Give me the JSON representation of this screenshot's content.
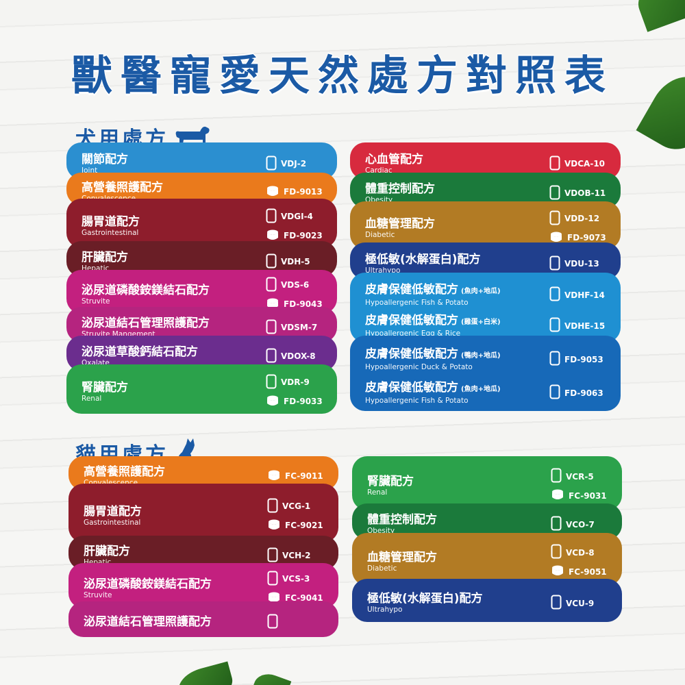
{
  "title": "獸醫寵愛天然處方對照表",
  "dog": {
    "heading": "犬用處方",
    "left": [
      {
        "color": "#2b8fd0",
        "entries": [
          {
            "zh": "關節配方",
            "en": "Joint",
            "codes": [
              {
                "code": "VDJ-2",
                "pack": "bag"
              }
            ]
          }
        ]
      },
      {
        "color": "#ea7a1c",
        "entries": [
          {
            "zh": "高營養照護配方",
            "en": "Convalescence",
            "codes": [
              {
                "code": "FD-9013",
                "pack": "can"
              }
            ]
          }
        ]
      },
      {
        "color": "#8e1d2c",
        "entries": [
          {
            "zh": "腸胃道配方",
            "en": "Gastrointestinal",
            "codes": [
              {
                "code": "VDGI-4",
                "pack": "bag"
              },
              {
                "code": "FD-9023",
                "pack": "can"
              }
            ]
          }
        ]
      },
      {
        "color": "#6a1e26",
        "entries": [
          {
            "zh": "肝臟配方",
            "en": "Hepatic",
            "codes": [
              {
                "code": "VDH-5",
                "pack": "bag"
              }
            ]
          }
        ]
      },
      {
        "color": "#c3207f",
        "entries": [
          {
            "zh": "泌尿道磷酸銨鎂結石配方",
            "en": "Struvite",
            "codes": [
              {
                "code": "VDS-6",
                "pack": "bag"
              },
              {
                "code": "FD-9043",
                "pack": "can"
              }
            ]
          }
        ]
      },
      {
        "color": "#b5247f",
        "entries": [
          {
            "zh": "泌尿道結石管理照護配方",
            "en": "Struvite Mangement",
            "codes": [
              {
                "code": "VDSM-7",
                "pack": "bag"
              }
            ]
          }
        ]
      },
      {
        "color": "#6b2d8e",
        "entries": [
          {
            "zh": "泌尿道草酸鈣結石配方",
            "en": "Oxalate",
            "codes": [
              {
                "code": "VDOX-8",
                "pack": "bag"
              }
            ]
          }
        ]
      },
      {
        "color": "#2ba24b",
        "entries": [
          {
            "zh": "腎臟配方",
            "en": "Renal",
            "codes": [
              {
                "code": "VDR-9",
                "pack": "bag"
              },
              {
                "code": "FD-9033",
                "pack": "can"
              }
            ]
          }
        ]
      }
    ],
    "right": [
      {
        "color": "#d72a3e",
        "entries": [
          {
            "zh": "心血管配方",
            "en": "Cardiac",
            "codes": [
              {
                "code": "VDCA-10",
                "pack": "bag"
              }
            ]
          }
        ]
      },
      {
        "color": "#1b7a3b",
        "entries": [
          {
            "zh": "體重控制配方",
            "en": "Obesity",
            "codes": [
              {
                "code": "VDOB-11",
                "pack": "bag"
              }
            ]
          }
        ]
      },
      {
        "color": "#b27b24",
        "entries": [
          {
            "zh": "血糖管理配方",
            "en": "Diabetic",
            "codes": [
              {
                "code": "VDD-12",
                "pack": "bag"
              },
              {
                "code": "FD-9073",
                "pack": "can"
              }
            ]
          }
        ]
      },
      {
        "color": "#203f8d",
        "entries": [
          {
            "zh": "極低敏(水解蛋白)配方",
            "en": "Ultrahypo",
            "codes": [
              {
                "code": "VDU-13",
                "pack": "bag"
              }
            ]
          }
        ]
      },
      {
        "color": "#1f90d2",
        "entries": [
          {
            "zh": "皮膚保健低敏配方",
            "note": "(魚肉+地瓜)",
            "en": "Hypoallergenic Fish & Potato",
            "codes": [
              {
                "code": "VDHF-14",
                "pack": "bag"
              }
            ]
          },
          {
            "zh": "皮膚保健低敏配方",
            "note": "(雞蛋+白米)",
            "en": "Hypoallergenic Egg & Rice",
            "codes": [
              {
                "code": "VDHE-15",
                "pack": "bag"
              }
            ]
          }
        ]
      },
      {
        "color": "#1769b8",
        "entries": [
          {
            "zh": "皮膚保健低敏配方",
            "note": "(鴨肉+地瓜)",
            "en": "Hypoallergenic Duck & Potato",
            "codes": [
              {
                "code": "FD-9053",
                "pack": "bag"
              }
            ]
          },
          {
            "zh": "皮膚保健低敏配方",
            "note": "(魚肉+地瓜)",
            "en": "Hypoallergenic Fish & Potato",
            "codes": [
              {
                "code": "FD-9063",
                "pack": "bag"
              }
            ]
          }
        ]
      }
    ]
  },
  "cat": {
    "heading": "貓用處方",
    "left": [
      {
        "color": "#ea7a1c",
        "entries": [
          {
            "zh": "高營養照護配方",
            "en": "Convalescence",
            "codes": [
              {
                "code": "FC-9011",
                "pack": "can"
              }
            ]
          }
        ]
      },
      {
        "color": "#8e1d2c",
        "entries": [
          {
            "zh": "腸胃道配方",
            "en": "Gastrointestinal",
            "codes": [
              {
                "code": "VCG-1",
                "pack": "bag"
              },
              {
                "code": "FC-9021",
                "pack": "can"
              }
            ]
          }
        ]
      },
      {
        "color": "#6a1e26",
        "entries": [
          {
            "zh": "肝臟配方",
            "en": "Hepatic",
            "codes": [
              {
                "code": "VCH-2",
                "pack": "bag"
              }
            ]
          }
        ]
      },
      {
        "color": "#c3207f",
        "entries": [
          {
            "zh": "泌尿道磷酸銨鎂結石配方",
            "en": "Struvite",
            "codes": [
              {
                "code": "VCS-3",
                "pack": "bag"
              },
              {
                "code": "FC-9041",
                "pack": "can"
              }
            ]
          }
        ]
      },
      {
        "color": "#b5247f",
        "entries": [
          {
            "zh": "泌尿道結石管理照護配方",
            "codes": [
              {
                "pack": "bag"
              }
            ]
          }
        ]
      }
    ],
    "right": [
      {
        "color": "#2ba24b",
        "entries": [
          {
            "zh": "腎臟配方",
            "en": "Renal",
            "codes": [
              {
                "code": "VCR-5",
                "pack": "bag"
              },
              {
                "code": "FC-9031",
                "pack": "can"
              }
            ]
          }
        ]
      },
      {
        "color": "#1b7a3b",
        "entries": [
          {
            "zh": "體重控制配方",
            "en": "Obesity",
            "codes": [
              {
                "code": "VCO-7",
                "pack": "bag"
              }
            ]
          }
        ]
      },
      {
        "color": "#b27b24",
        "entries": [
          {
            "zh": "血糖管理配方",
            "en": "Diabetic",
            "codes": [
              {
                "code": "VCD-8",
                "pack": "bag"
              },
              {
                "code": "FC-9051",
                "pack": "can"
              }
            ]
          }
        ]
      },
      {
        "color": "#203f8d",
        "entries": [
          {
            "zh": "極低敏(水解蛋白)配方",
            "en": "Ultrahypo",
            "codes": [
              {
                "code": "VCU-9",
                "pack": "bag"
              }
            ]
          }
        ]
      }
    ]
  }
}
